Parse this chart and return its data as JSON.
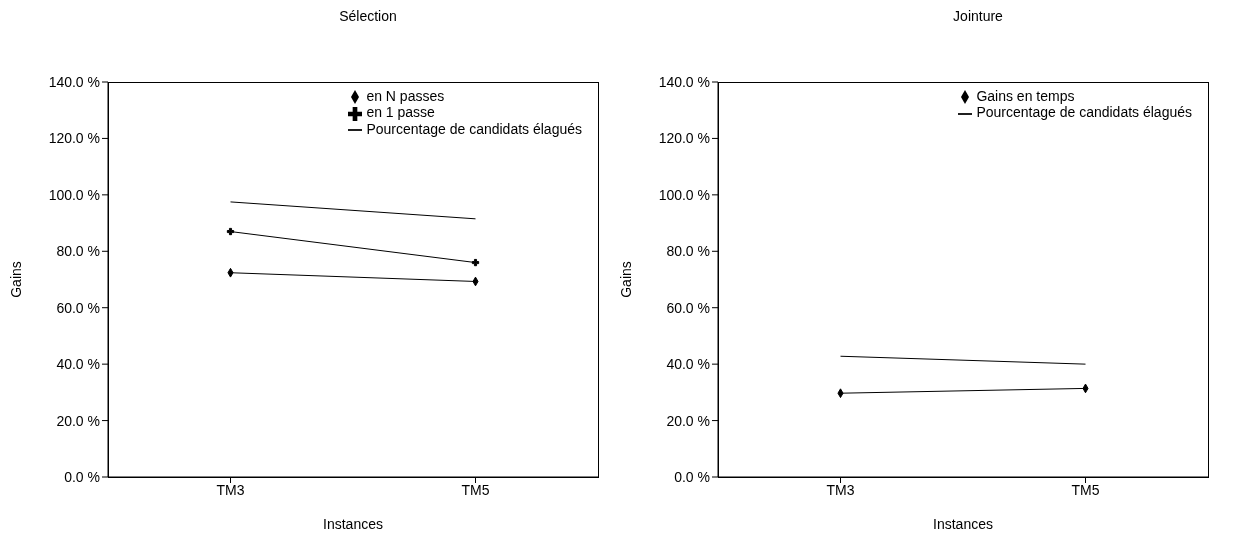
{
  "chart_data": [
    {
      "type": "line",
      "title": "Sélection",
      "xlabel": "Instances",
      "ylabel": "Gains",
      "categories": [
        "TM3",
        "TM5"
      ],
      "ylim": [
        0,
        140
      ],
      "yticks": [
        {
          "value": 0,
          "label": "0.0 %"
        },
        {
          "value": 20,
          "label": "20.0 %"
        },
        {
          "value": 40,
          "label": "40.0 %"
        },
        {
          "value": 60,
          "label": "60.0 %"
        },
        {
          "value": 80,
          "label": "80.0 %"
        },
        {
          "value": 100,
          "label": "100.0 %"
        },
        {
          "value": 120,
          "label": "120.0 %"
        },
        {
          "value": 140,
          "label": "140.0 %"
        }
      ],
      "grid": false,
      "legend": "top right",
      "series": [
        {
          "name": "en N passes",
          "color": "#000000",
          "marker": "diamond",
          "values": [
            72.4,
            69.3
          ]
        },
        {
          "name": "en 1 passe",
          "color": "#000000",
          "marker": "cross",
          "values": [
            87,
            76
          ]
        },
        {
          "name": "Pourcentage de candidats élagués",
          "color": "#000000",
          "marker": "none",
          "values": [
            97.5,
            91.5
          ]
        }
      ]
    },
    {
      "type": "line",
      "title": "Jointure",
      "xlabel": "Instances",
      "ylabel": "Gains",
      "categories": [
        "TM3",
        "TM5"
      ],
      "ylim": [
        0,
        140
      ],
      "yticks": [
        {
          "value": 0,
          "label": "0.0 %"
        },
        {
          "value": 20,
          "label": "20.0 %"
        },
        {
          "value": 40,
          "label": "40.0 %"
        },
        {
          "value": 60,
          "label": "60.0 %"
        },
        {
          "value": 80,
          "label": "80.0 %"
        },
        {
          "value": 100,
          "label": "100.0 %"
        },
        {
          "value": 120,
          "label": "120.0 %"
        },
        {
          "value": 140,
          "label": "140.0 %"
        }
      ],
      "grid": false,
      "legend": "top right",
      "series": [
        {
          "name": "Gains en temps",
          "color": "#000000",
          "marker": "diamond",
          "values": [
            29.7,
            31.4
          ]
        },
        {
          "name": "Pourcentage de candidats élagués",
          "color": "#000000",
          "marker": "none",
          "values": [
            42.8,
            40
          ]
        }
      ]
    }
  ]
}
